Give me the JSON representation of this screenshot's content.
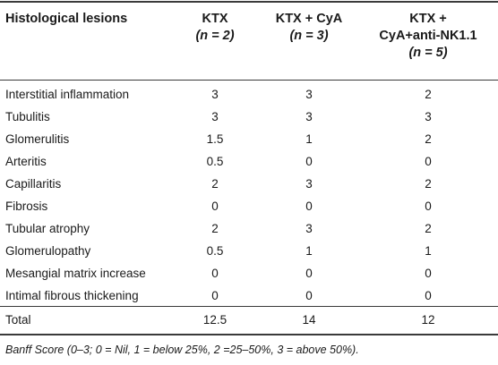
{
  "header": {
    "lesion": "Histological lesions",
    "ktx_line1": "KTX",
    "ktx_n": "(n = 2)",
    "cya_line1": "KTX + CyA",
    "cya_n": "(n = 3)",
    "nk_line1": "KTX +",
    "nk_line2": "CyA+anti-NK1.1",
    "nk_n": "(n = 5)"
  },
  "rows": [
    {
      "label": "Interstitial inflammation",
      "ktx": "3",
      "cya": "3",
      "nk": "2"
    },
    {
      "label": "Tubulitis",
      "ktx": "3",
      "cya": "3",
      "nk": "3"
    },
    {
      "label": "Glomerulitis",
      "ktx": "1.5",
      "cya": "1",
      "nk": "2"
    },
    {
      "label": "Arteritis",
      "ktx": "0.5",
      "cya": "0",
      "nk": "0"
    },
    {
      "label": "Capillaritis",
      "ktx": "2",
      "cya": "3",
      "nk": "2"
    },
    {
      "label": "Fibrosis",
      "ktx": "0",
      "cya": "0",
      "nk": "0"
    },
    {
      "label": "Tubular atrophy",
      "ktx": "2",
      "cya": "3",
      "nk": "2"
    },
    {
      "label": "Glomerulopathy",
      "ktx": "0.5",
      "cya": "1",
      "nk": "1"
    },
    {
      "label": "Mesangial matrix increase",
      "ktx": "0",
      "cya": "0",
      "nk": "0"
    },
    {
      "label": "Intimal fibrous thickening",
      "ktx": "0",
      "cya": "0",
      "nk": "0"
    }
  ],
  "total": {
    "label": "Total",
    "ktx": "12.5",
    "cya": "14",
    "nk": "12"
  },
  "footnote": "Banff Score (0–3; 0 = Nil, 1 = below 25%, 2 =25–50%, 3 = above 50%)."
}
